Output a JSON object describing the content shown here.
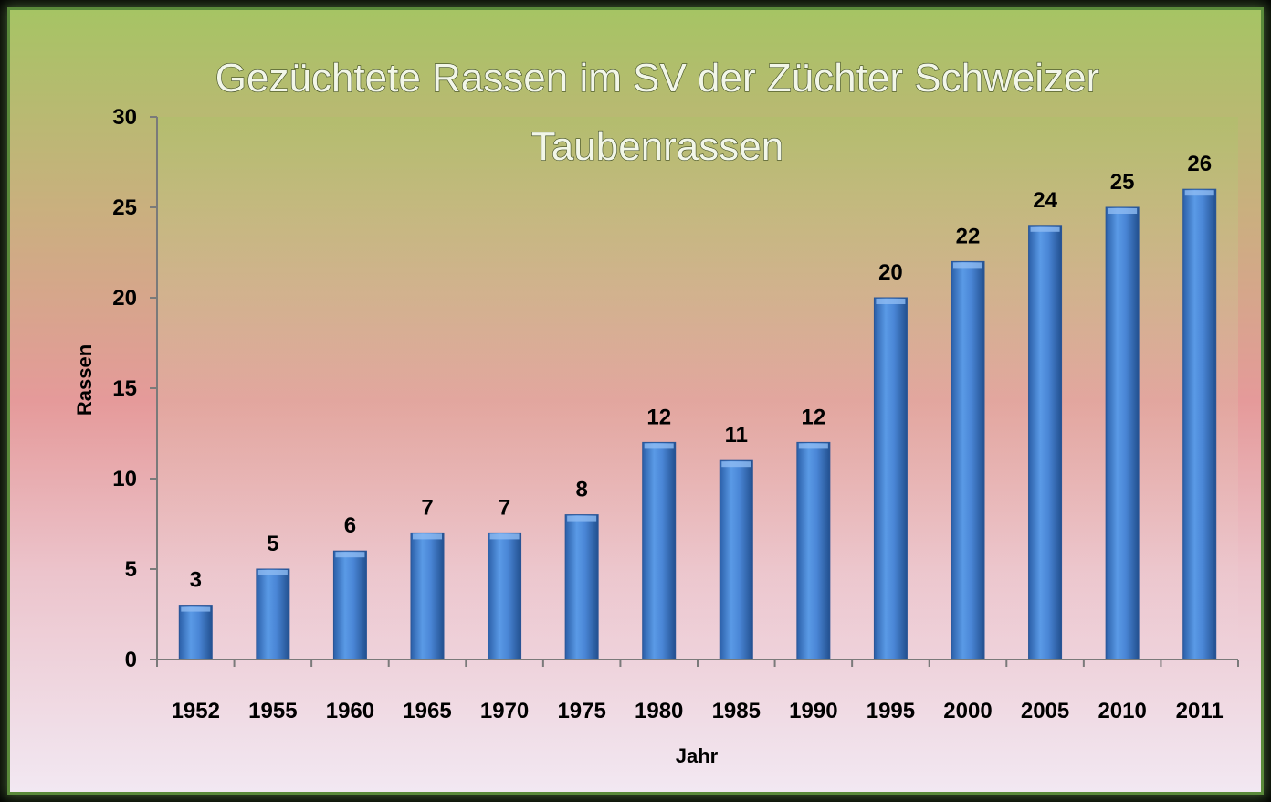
{
  "chart_data": {
    "type": "bar",
    "title": "Gezüchtete Rassen im SV der Züchter Schweizer Taubenrassen",
    "title_lines": [
      "Gezüchtete Rassen im SV der Züchter Schweizer",
      "Taubenrassen"
    ],
    "xlabel": "Jahr",
    "ylabel": "Rassen",
    "categories": [
      "1952",
      "1955",
      "1960",
      "1965",
      "1970",
      "1975",
      "1980",
      "1985",
      "1990",
      "1995",
      "2000",
      "2005",
      "2010",
      "2011"
    ],
    "values": [
      3,
      5,
      6,
      7,
      7,
      8,
      12,
      11,
      12,
      20,
      22,
      24,
      25,
      26
    ],
    "ylim": [
      0,
      30
    ],
    "yticks": [
      "0",
      "5",
      "10",
      "15",
      "20",
      "25",
      "30"
    ],
    "grid": false,
    "legend": "none",
    "bar_color": "#3f7fd0"
  }
}
